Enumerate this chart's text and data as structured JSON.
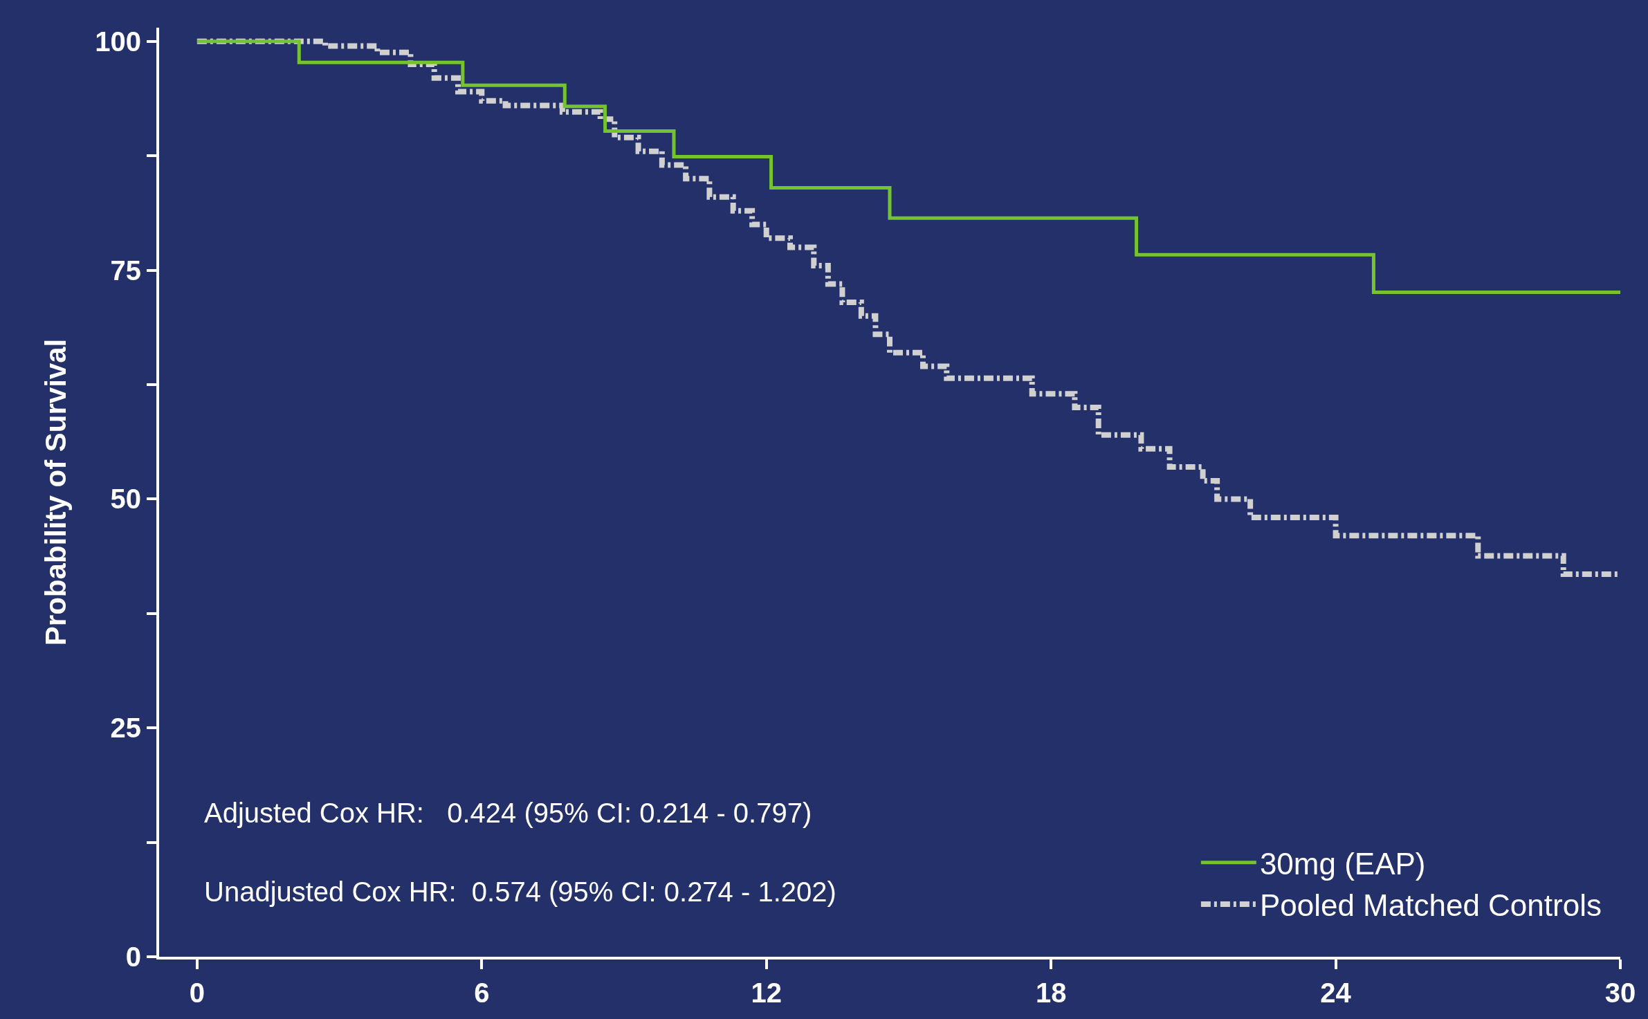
{
  "chart_data": {
    "type": "step",
    "ylabel": "Probability of Survival",
    "xlim": [
      -0.8,
      30
    ],
    "xticks": [
      0,
      6,
      12,
      18,
      24,
      30
    ],
    "ylim": [
      0,
      101.5
    ],
    "yticks": [
      0,
      {
        "value": 12.5,
        "label": null
      },
      25,
      {
        "value": 37.5,
        "label": null
      },
      50,
      {
        "value": 62.5,
        "label": null
      },
      75,
      {
        "value": 87.5,
        "label": null
      },
      100
    ],
    "grid": false,
    "legend": "bottom right",
    "marker": "none",
    "series": [
      {
        "name": "30mg (EAP)",
        "color": "#74c32f",
        "line_style": "solid",
        "x": [
          0,
          2.15,
          5.6,
          7.75,
          8.6,
          10.05,
          12.1,
          14.6,
          19.8,
          24.8,
          30
        ],
        "values": [
          100,
          97.7,
          95.2,
          92.9,
          90.2,
          87.4,
          84.0,
          80.7,
          76.7,
          72.6,
          72.6
        ]
      },
      {
        "name": "Pooled Matched Controls",
        "color": "#d0d0d0",
        "line_style": "dashdot",
        "x": [
          0,
          2.7,
          3.8,
          4.5,
          5.0,
          5.5,
          6.0,
          6.5,
          7.7,
          8.5,
          8.8,
          9.3,
          9.8,
          10.3,
          10.8,
          11.3,
          11.7,
          12.0,
          12.5,
          13.0,
          13.3,
          13.6,
          14.0,
          14.3,
          14.6,
          15.3,
          15.8,
          17.6,
          18.5,
          19.0,
          19.9,
          20.5,
          21.2,
          21.5,
          22.2,
          24.0,
          27.0,
          28.8,
          30
        ],
        "values": [
          100,
          99.5,
          98.8,
          97.5,
          96,
          94.5,
          93.5,
          93,
          92.3,
          91.5,
          89.5,
          88,
          86.5,
          85,
          83,
          81.5,
          80,
          78.5,
          77.5,
          75.5,
          73.5,
          71.5,
          70,
          68,
          66,
          64.5,
          63.2,
          61.5,
          60,
          57,
          55.5,
          53.5,
          52,
          50,
          48,
          46,
          43.8,
          41.8,
          41.8
        ]
      }
    ],
    "annotations": [
      "Adjusted Cox HR:   0.424 (95% CI: 0.214 - 0.797)",
      "Unadjusted Cox HR:  0.574 (95% CI: 0.274 - 1.202)"
    ]
  }
}
